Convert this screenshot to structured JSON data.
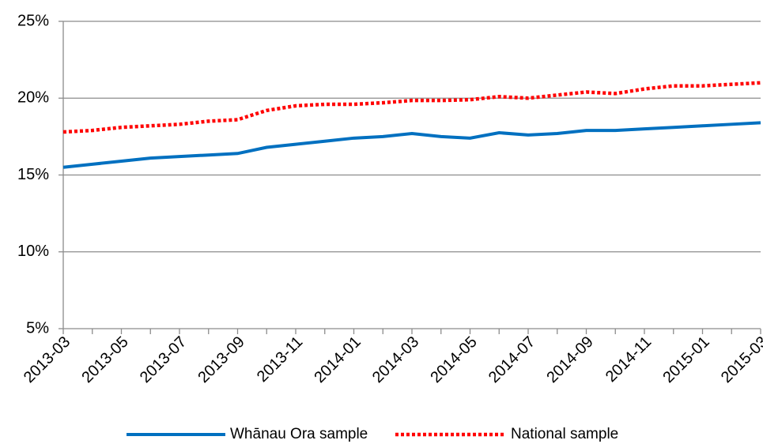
{
  "chart_data": {
    "type": "line",
    "categories": [
      "2013-03",
      null,
      "2013-05",
      null,
      "2013-07",
      null,
      "2013-09",
      null,
      "2013-11",
      null,
      "2014-01",
      null,
      "2014-03",
      null,
      "2014-05",
      null,
      "2014-07",
      null,
      "2014-09",
      null,
      "2014-11",
      null,
      "2015-01",
      null,
      "2015-03"
    ],
    "series": [
      {
        "name": "Whānau Ora sample",
        "color": "#0070c0",
        "style": "solid",
        "values": [
          15.5,
          15.7,
          15.9,
          16.1,
          16.2,
          16.3,
          16.4,
          16.8,
          17.0,
          17.2,
          17.4,
          17.5,
          17.7,
          17.5,
          17.4,
          17.75,
          17.6,
          17.7,
          17.9,
          17.9,
          18.0,
          18.1,
          18.2,
          18.3,
          18.4
        ]
      },
      {
        "name": "National sample",
        "color": "#ff0000",
        "style": "dotted",
        "values": [
          17.8,
          17.9,
          18.1,
          18.2,
          18.3,
          18.5,
          18.6,
          19.2,
          19.5,
          19.6,
          19.6,
          19.7,
          19.85,
          19.85,
          19.9,
          20.1,
          20.0,
          20.2,
          20.4,
          20.3,
          20.6,
          20.8,
          20.8,
          20.9,
          21.0
        ]
      }
    ],
    "ylim": [
      5,
      25
    ],
    "yticks": [
      {
        "value": 5,
        "label": "5%"
      },
      {
        "value": 10,
        "label": "10%"
      },
      {
        "value": 15,
        "label": "15%"
      },
      {
        "value": 20,
        "label": "20%"
      },
      {
        "value": 25,
        "label": "25%"
      }
    ],
    "grid": true,
    "legend": "bottom"
  }
}
